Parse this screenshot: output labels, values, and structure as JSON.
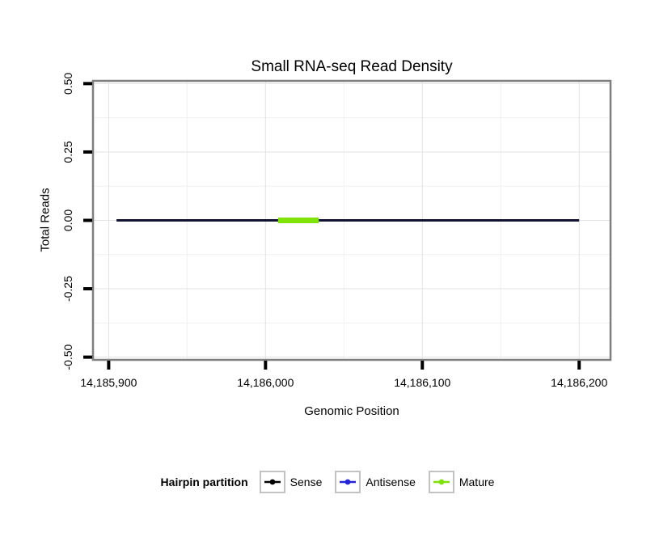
{
  "chart_data": {
    "type": "line",
    "title": "Small RNA-seq Read Density",
    "xlabel": "Genomic Position",
    "ylabel": "Total Reads",
    "xlim": [
      14185890,
      14186220
    ],
    "ylim": [
      -0.51,
      0.51
    ],
    "grid": true,
    "x_ticks": [
      {
        "value": 14185900,
        "label": "14,185,900"
      },
      {
        "value": 14186000,
        "label": "14,186,000"
      },
      {
        "value": 14186100,
        "label": "14,186,100"
      },
      {
        "value": 14186200,
        "label": "14,186,200"
      }
    ],
    "y_ticks": [
      {
        "value": 0.5,
        "label": "0.50"
      },
      {
        "value": 0.25,
        "label": "0.25"
      },
      {
        "value": 0.0,
        "label": "0.00"
      },
      {
        "value": -0.25,
        "label": "-0.25"
      },
      {
        "value": -0.5,
        "label": "-0.50"
      }
    ],
    "x_minor_ticks": [
      14185950,
      14186050,
      14186150
    ],
    "y_minor_ticks": [
      0.375,
      0.125,
      -0.125,
      -0.375
    ],
    "series": [
      {
        "name": "Sense",
        "color": "#121232",
        "width": 3,
        "points": [
          [
            14185905,
            0
          ],
          [
            14186200,
            0
          ]
        ]
      },
      {
        "name": "Mature",
        "color": "#7fe30a",
        "width": 7,
        "points": [
          [
            14186008,
            0
          ],
          [
            14186034,
            0
          ]
        ]
      }
    ],
    "legend": {
      "title": "Hairpin partition",
      "position": "bottom",
      "entries": [
        {
          "label": "Sense",
          "color": "#000000"
        },
        {
          "label": "Antisense",
          "color": "#2424d8"
        },
        {
          "label": "Mature",
          "color": "#7fe30a"
        }
      ]
    },
    "colors": {
      "grid_major": "#e3e3e3",
      "grid_minor": "#f1f1f1",
      "panel_border": "#7f7f7f",
      "tick": "#000000",
      "tick_label": "#000000",
      "panel_background": "#ffffff"
    }
  }
}
